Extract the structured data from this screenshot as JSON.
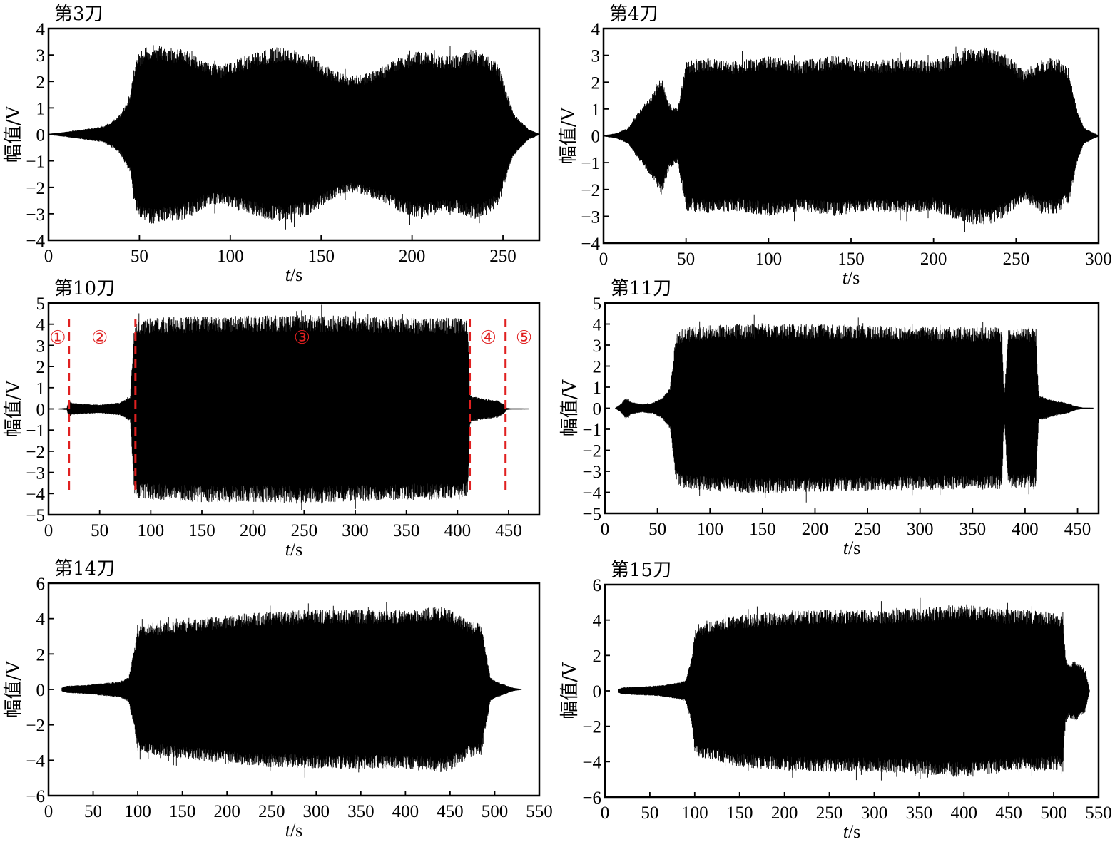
{
  "chart_data": [
    {
      "type": "line",
      "title": "第3刀",
      "ylabel": "幅值/V",
      "xlabel_italic": "t",
      "xlabel_unit": "/s",
      "xlim": [
        0,
        270
      ],
      "ylim": [
        -4,
        4
      ],
      "xticks": [
        0,
        50,
        100,
        150,
        200,
        250
      ],
      "yticks": [
        -4,
        -3,
        -2,
        -1,
        0,
        1,
        2,
        3,
        4
      ],
      "grid": false,
      "series": [
        {
          "color": "#000000",
          "envelope": {
            "t": [
              0,
              10,
              20,
              30,
              35,
              40,
              45,
              48,
              55,
              65,
              75,
              85,
              95,
              105,
              115,
              125,
              135,
              145,
              155,
              165,
              175,
              185,
              195,
              205,
              215,
              225,
              235,
              242,
              248,
              252,
              256,
              260,
              264,
              270
            ],
            "amp": [
              0.02,
              0.1,
              0.2,
              0.3,
              0.5,
              0.8,
              1.5,
              3.0,
              3.4,
              3.3,
              3.2,
              2.8,
              2.6,
              2.9,
              3.1,
              3.3,
              3.2,
              3.0,
              2.5,
              2.2,
              2.3,
              2.6,
              3.0,
              3.2,
              3.0,
              3.0,
              3.2,
              3.0,
              2.6,
              1.6,
              0.8,
              0.5,
              0.2,
              0.02
            ]
          }
        }
      ]
    },
    {
      "type": "line",
      "title": "第4刀",
      "ylabel": "幅值/V",
      "xlabel_italic": "t",
      "xlabel_unit": "/s",
      "xlim": [
        0,
        300
      ],
      "ylim": [
        -4,
        4
      ],
      "xticks": [
        0,
        50,
        100,
        150,
        200,
        250,
        300
      ],
      "yticks": [
        -4,
        -3,
        -2,
        -1,
        0,
        1,
        2,
        3,
        4
      ],
      "grid": false,
      "series": [
        {
          "color": "#000000",
          "envelope": {
            "t": [
              0,
              8,
              15,
              20,
              25,
              30,
              35,
              40,
              45,
              50,
              60,
              80,
              100,
              120,
              140,
              160,
              180,
              200,
              220,
              235,
              245,
              255,
              265,
              275,
              282,
              287,
              291,
              300
            ],
            "amp": [
              0.02,
              0.1,
              0.3,
              0.8,
              1.2,
              1.6,
              2.2,
              1.2,
              1.0,
              2.8,
              2.9,
              2.8,
              3.0,
              2.8,
              3.0,
              2.8,
              2.9,
              2.8,
              3.3,
              3.3,
              3.0,
              2.4,
              2.9,
              2.9,
              2.5,
              1.0,
              0.3,
              0.02
            ]
          }
        }
      ]
    },
    {
      "type": "line",
      "title": "第10刀",
      "ylabel": "幅值/V",
      "xlabel_italic": "t",
      "xlabel_unit": "/s",
      "xlim": [
        0,
        480
      ],
      "ylim": [
        -5,
        5
      ],
      "xticks": [
        0,
        50,
        100,
        150,
        200,
        250,
        300,
        350,
        400,
        450
      ],
      "yticks": [
        -5,
        -4,
        -3,
        -2,
        -1,
        0,
        1,
        2,
        3,
        4,
        5
      ],
      "grid": false,
      "phase_boundaries": [
        20,
        85,
        412,
        447
      ],
      "phase_labels": [
        "①",
        "②",
        "③",
        "④",
        "⑤"
      ],
      "phase_label_x": [
        9,
        50,
        248,
        430,
        465
      ],
      "series": [
        {
          "color": "#000000",
          "envelope": {
            "t": [
              10,
              18,
              20,
              22,
              30,
              50,
              70,
              80,
              84,
              86,
              100,
              150,
              200,
              250,
              300,
              350,
              400,
              410,
              412,
              414,
              425,
              440,
              446,
              448,
              452,
              470
            ],
            "amp": [
              0.02,
              0.05,
              0.4,
              0.3,
              0.25,
              0.2,
              0.3,
              0.6,
              4.0,
              4.2,
              4.3,
              4.4,
              4.4,
              4.45,
              4.4,
              4.3,
              4.3,
              4.2,
              0.8,
              0.6,
              0.5,
              0.4,
              0.2,
              0.05,
              0.03,
              0.02
            ]
          }
        }
      ]
    },
    {
      "type": "line",
      "title": "第11刀",
      "ylabel": "幅值/V",
      "xlabel_italic": "t",
      "xlabel_unit": "/s",
      "xlim": [
        0,
        470
      ],
      "ylim": [
        -5,
        5
      ],
      "xticks": [
        0,
        50,
        100,
        150,
        200,
        250,
        300,
        350,
        400,
        450
      ],
      "yticks": [
        -5,
        -4,
        -3,
        -2,
        -1,
        0,
        1,
        2,
        3,
        4,
        5
      ],
      "grid": false,
      "series": [
        {
          "color": "#000000",
          "envelope": {
            "t": [
              10,
              15,
              20,
              25,
              35,
              45,
              55,
              62,
              68,
              75,
              100,
              150,
              200,
              250,
              300,
              350,
              378,
              380,
              384,
              400,
              410,
              413,
              420,
              430,
              440,
              448,
              455,
              465
            ],
            "amp": [
              0.02,
              0.2,
              0.5,
              0.3,
              0.2,
              0.25,
              0.5,
              1.0,
              3.6,
              3.85,
              3.95,
              4.05,
              4.0,
              3.95,
              3.9,
              3.85,
              3.85,
              0.4,
              3.8,
              3.8,
              3.8,
              0.6,
              0.5,
              0.35,
              0.25,
              0.1,
              0.03,
              0.02
            ]
          }
        }
      ]
    },
    {
      "type": "line",
      "title": "第14刀",
      "ylabel": "幅值/V",
      "xlabel_italic": "t",
      "xlabel_unit": "/s",
      "xlim": [
        0,
        550
      ],
      "ylim": [
        -6,
        6
      ],
      "xticks": [
        0,
        50,
        100,
        150,
        200,
        250,
        300,
        350,
        400,
        450,
        500,
        550
      ],
      "yticks": [
        -6,
        -4,
        -2,
        0,
        2,
        4,
        6
      ],
      "grid": false,
      "series": [
        {
          "color": "#000000",
          "envelope": {
            "t": [
              15,
              20,
              40,
              60,
              80,
              90,
              97,
              100,
              104,
              150,
              200,
              250,
              300,
              350,
              400,
              440,
              450,
              470,
              485,
              495,
              500,
              510,
              520,
              530
            ],
            "amp": [
              0.1,
              0.2,
              0.25,
              0.35,
              0.45,
              0.7,
              2.5,
              3.5,
              3.6,
              3.9,
              4.2,
              4.4,
              4.5,
              4.5,
              4.5,
              4.7,
              4.6,
              3.9,
              3.7,
              0.7,
              0.5,
              0.3,
              0.1,
              0.02
            ]
          }
        }
      ]
    },
    {
      "type": "line",
      "title": "第15刀",
      "ylabel": "幅值/V",
      "xlabel_italic": "t",
      "xlabel_unit": "/s",
      "xlim": [
        0,
        550
      ],
      "ylim": [
        -6,
        6
      ],
      "xticks": [
        0,
        50,
        100,
        150,
        200,
        250,
        300,
        350,
        400,
        450,
        500,
        550
      ],
      "yticks": [
        -6,
        -4,
        -2,
        0,
        2,
        4,
        6
      ],
      "grid": false,
      "series": [
        {
          "color": "#000000",
          "envelope": {
            "t": [
              15,
              20,
              40,
              60,
              80,
              90,
              97,
              100,
              106,
              150,
              200,
              250,
              300,
              350,
              400,
              450,
              500,
              510,
              513,
              516,
              525,
              535,
              540
            ],
            "amp": [
              0.1,
              0.2,
              0.25,
              0.3,
              0.45,
              0.6,
              2.0,
              3.4,
              3.8,
              4.3,
              4.5,
              4.6,
              4.6,
              4.7,
              4.9,
              4.6,
              4.5,
              4.4,
              2.0,
              1.5,
              1.7,
              1.2,
              0.02
            ]
          }
        }
      ]
    }
  ]
}
